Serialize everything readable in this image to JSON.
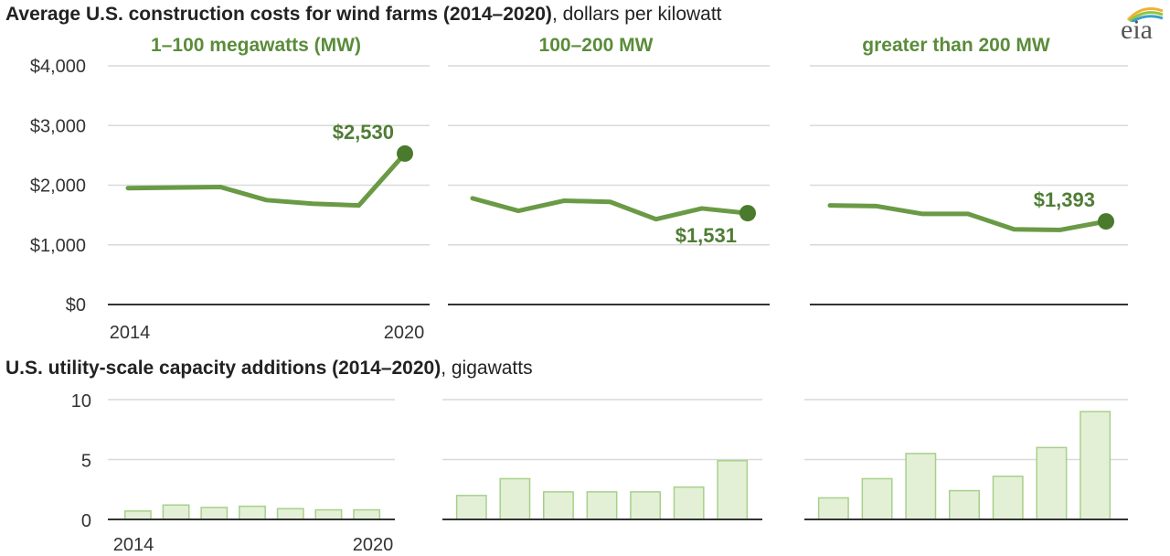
{
  "titles": {
    "cost_bold": "Average U.S. construction costs for wind farms (2014–2020)",
    "cost_unit": ", dollars per kilowatt",
    "cap_bold": "U.S. utility-scale capacity additions (2014–2020)",
    "cap_unit": ", gigawatts"
  },
  "logo": {
    "text": "eia"
  },
  "colors": {
    "line": "#6a9a45",
    "dot": "#4a7a2c",
    "label": "#4f7d35",
    "panel_title": "#5a8c3a",
    "bar_fill": "#e3f0d6",
    "bar_stroke": "#a7d08a",
    "grid": "#d9d9d9",
    "axis": "#333333"
  },
  "chart_data": [
    {
      "type": "line",
      "group": "cost",
      "title": "1–100 megawatts (MW)",
      "x": [
        2014,
        2015,
        2016,
        2017,
        2018,
        2019,
        2020
      ],
      "x_tick_labels": [
        "2014",
        "2020"
      ],
      "values": [
        1950,
        1960,
        1970,
        1750,
        1690,
        1660,
        2530
      ],
      "ylim": [
        0,
        4000
      ],
      "y_ticks": [
        0,
        1000,
        2000,
        3000,
        4000
      ],
      "y_tick_labels": [
        "$0",
        "$1,000",
        "$2,000",
        "$3,000",
        "$4,000"
      ],
      "highlight": {
        "x": 2020,
        "value": 2530,
        "label": "$2,530",
        "label_position": "above-left"
      },
      "grid": true
    },
    {
      "type": "line",
      "group": "cost",
      "title": "100–200 MW",
      "x": [
        2014,
        2015,
        2016,
        2017,
        2018,
        2019,
        2020
      ],
      "values": [
        1780,
        1570,
        1740,
        1720,
        1430,
        1610,
        1531
      ],
      "ylim": [
        0,
        4000
      ],
      "highlight": {
        "x": 2020,
        "value": 1531,
        "label": "$1,531",
        "label_position": "below-left"
      },
      "grid": true
    },
    {
      "type": "line",
      "group": "cost",
      "title": "greater than 200 MW",
      "x": [
        2014,
        2015,
        2016,
        2017,
        2018,
        2019,
        2020
      ],
      "values": [
        1660,
        1650,
        1520,
        1520,
        1260,
        1250,
        1393
      ],
      "ylim": [
        0,
        4000
      ],
      "highlight": {
        "x": 2020,
        "value": 1393,
        "label": "$1,393",
        "label_position": "above-left"
      },
      "grid": true
    },
    {
      "type": "bar",
      "group": "capacity",
      "categories": [
        2014,
        2015,
        2016,
        2017,
        2018,
        2019,
        2020
      ],
      "x_tick_labels": [
        "2014",
        "2020"
      ],
      "values": [
        0.7,
        1.2,
        1.0,
        1.1,
        0.9,
        0.8,
        0.8
      ],
      "ylim": [
        0,
        10
      ],
      "y_ticks": [
        0,
        5,
        10
      ],
      "y_tick_labels": [
        "0",
        "5",
        "10"
      ],
      "grid": true
    },
    {
      "type": "bar",
      "group": "capacity",
      "categories": [
        2014,
        2015,
        2016,
        2017,
        2018,
        2019,
        2020
      ],
      "values": [
        2.0,
        3.4,
        2.3,
        2.3,
        2.3,
        2.7,
        4.9
      ],
      "ylim": [
        0,
        10
      ],
      "grid": true
    },
    {
      "type": "bar",
      "group": "capacity",
      "categories": [
        2014,
        2015,
        2016,
        2017,
        2018,
        2019,
        2020
      ],
      "values": [
        1.8,
        3.4,
        5.5,
        2.4,
        3.6,
        6.0,
        9.0
      ],
      "ylim": [
        0,
        10
      ],
      "grid": true
    }
  ]
}
